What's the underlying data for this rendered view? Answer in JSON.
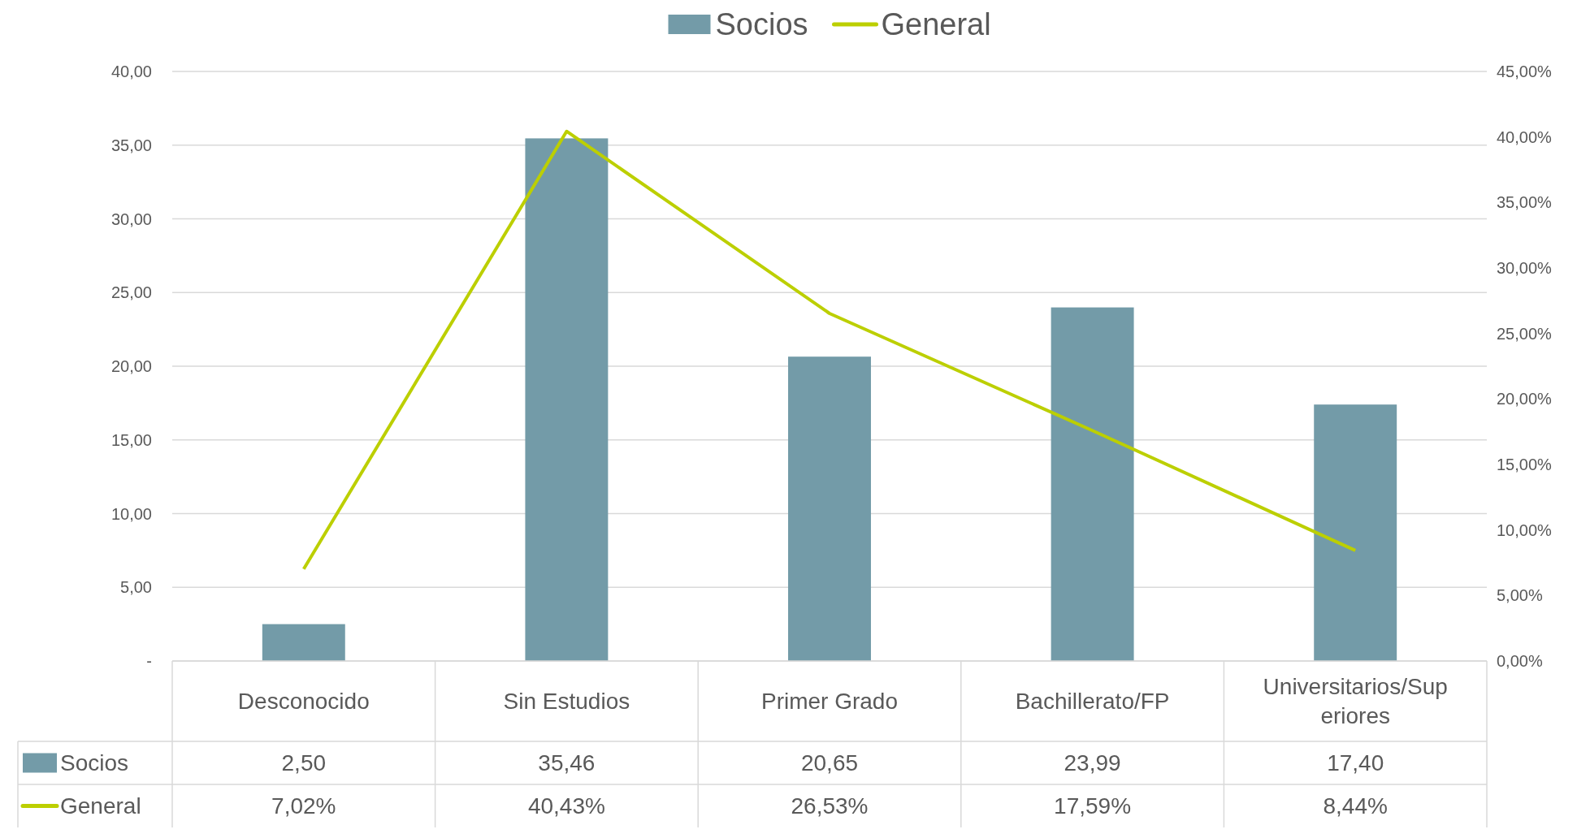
{
  "chart_data": {
    "type": "bar",
    "categories": [
      "Desconocido",
      "Sin Estudios",
      "Primer Grado",
      "Bachillerato/FP",
      "Universitarios/Superiores"
    ],
    "series": [
      {
        "name": "Socios",
        "color": "#739ba8",
        "values": [
          2.5,
          35.46,
          20.65,
          23.99,
          17.4
        ],
        "value_labels": [
          "2,50",
          "35,46",
          "20,65",
          "23,99",
          "17,40"
        ]
      },
      {
        "name": "General",
        "type": "line",
        "axis": "y2",
        "color": "#bccf00",
        "values": [
          7.02,
          40.43,
          26.53,
          17.59,
          8.44
        ],
        "value_labels": [
          "7,02%",
          "40,43%",
          "26,53%",
          "17,59%",
          "8,44%"
        ]
      }
    ],
    "ylim": [
      0,
      40
    ],
    "yticks": [
      {
        "value": 0,
        "label": "-"
      },
      {
        "value": 5,
        "label": "5,00"
      },
      {
        "value": 10,
        "label": "10,00"
      },
      {
        "value": 15,
        "label": "15,00"
      },
      {
        "value": 20,
        "label": "20,00"
      },
      {
        "value": 25,
        "label": "25,00"
      },
      {
        "value": 30,
        "label": "30,00"
      },
      {
        "value": 35,
        "label": "35,00"
      },
      {
        "value": 40,
        "label": "40,00"
      }
    ],
    "y2lim": [
      0,
      45
    ],
    "y2ticks": [
      {
        "value": 0,
        "label": "0,00%"
      },
      {
        "value": 5,
        "label": "5,00%"
      },
      {
        "value": 10,
        "label": "10,00%"
      },
      {
        "value": 15,
        "label": "15,00%"
      },
      {
        "value": 20,
        "label": "20,00%"
      },
      {
        "value": 25,
        "label": "25,00%"
      },
      {
        "value": 30,
        "label": "30,00%"
      },
      {
        "value": 35,
        "label": "35,00%"
      },
      {
        "value": 40,
        "label": "40,00%"
      },
      {
        "value": 45,
        "label": "45,00%"
      }
    ],
    "grid": "y",
    "legend": "top",
    "marker": "none",
    "line_style": "solid"
  }
}
